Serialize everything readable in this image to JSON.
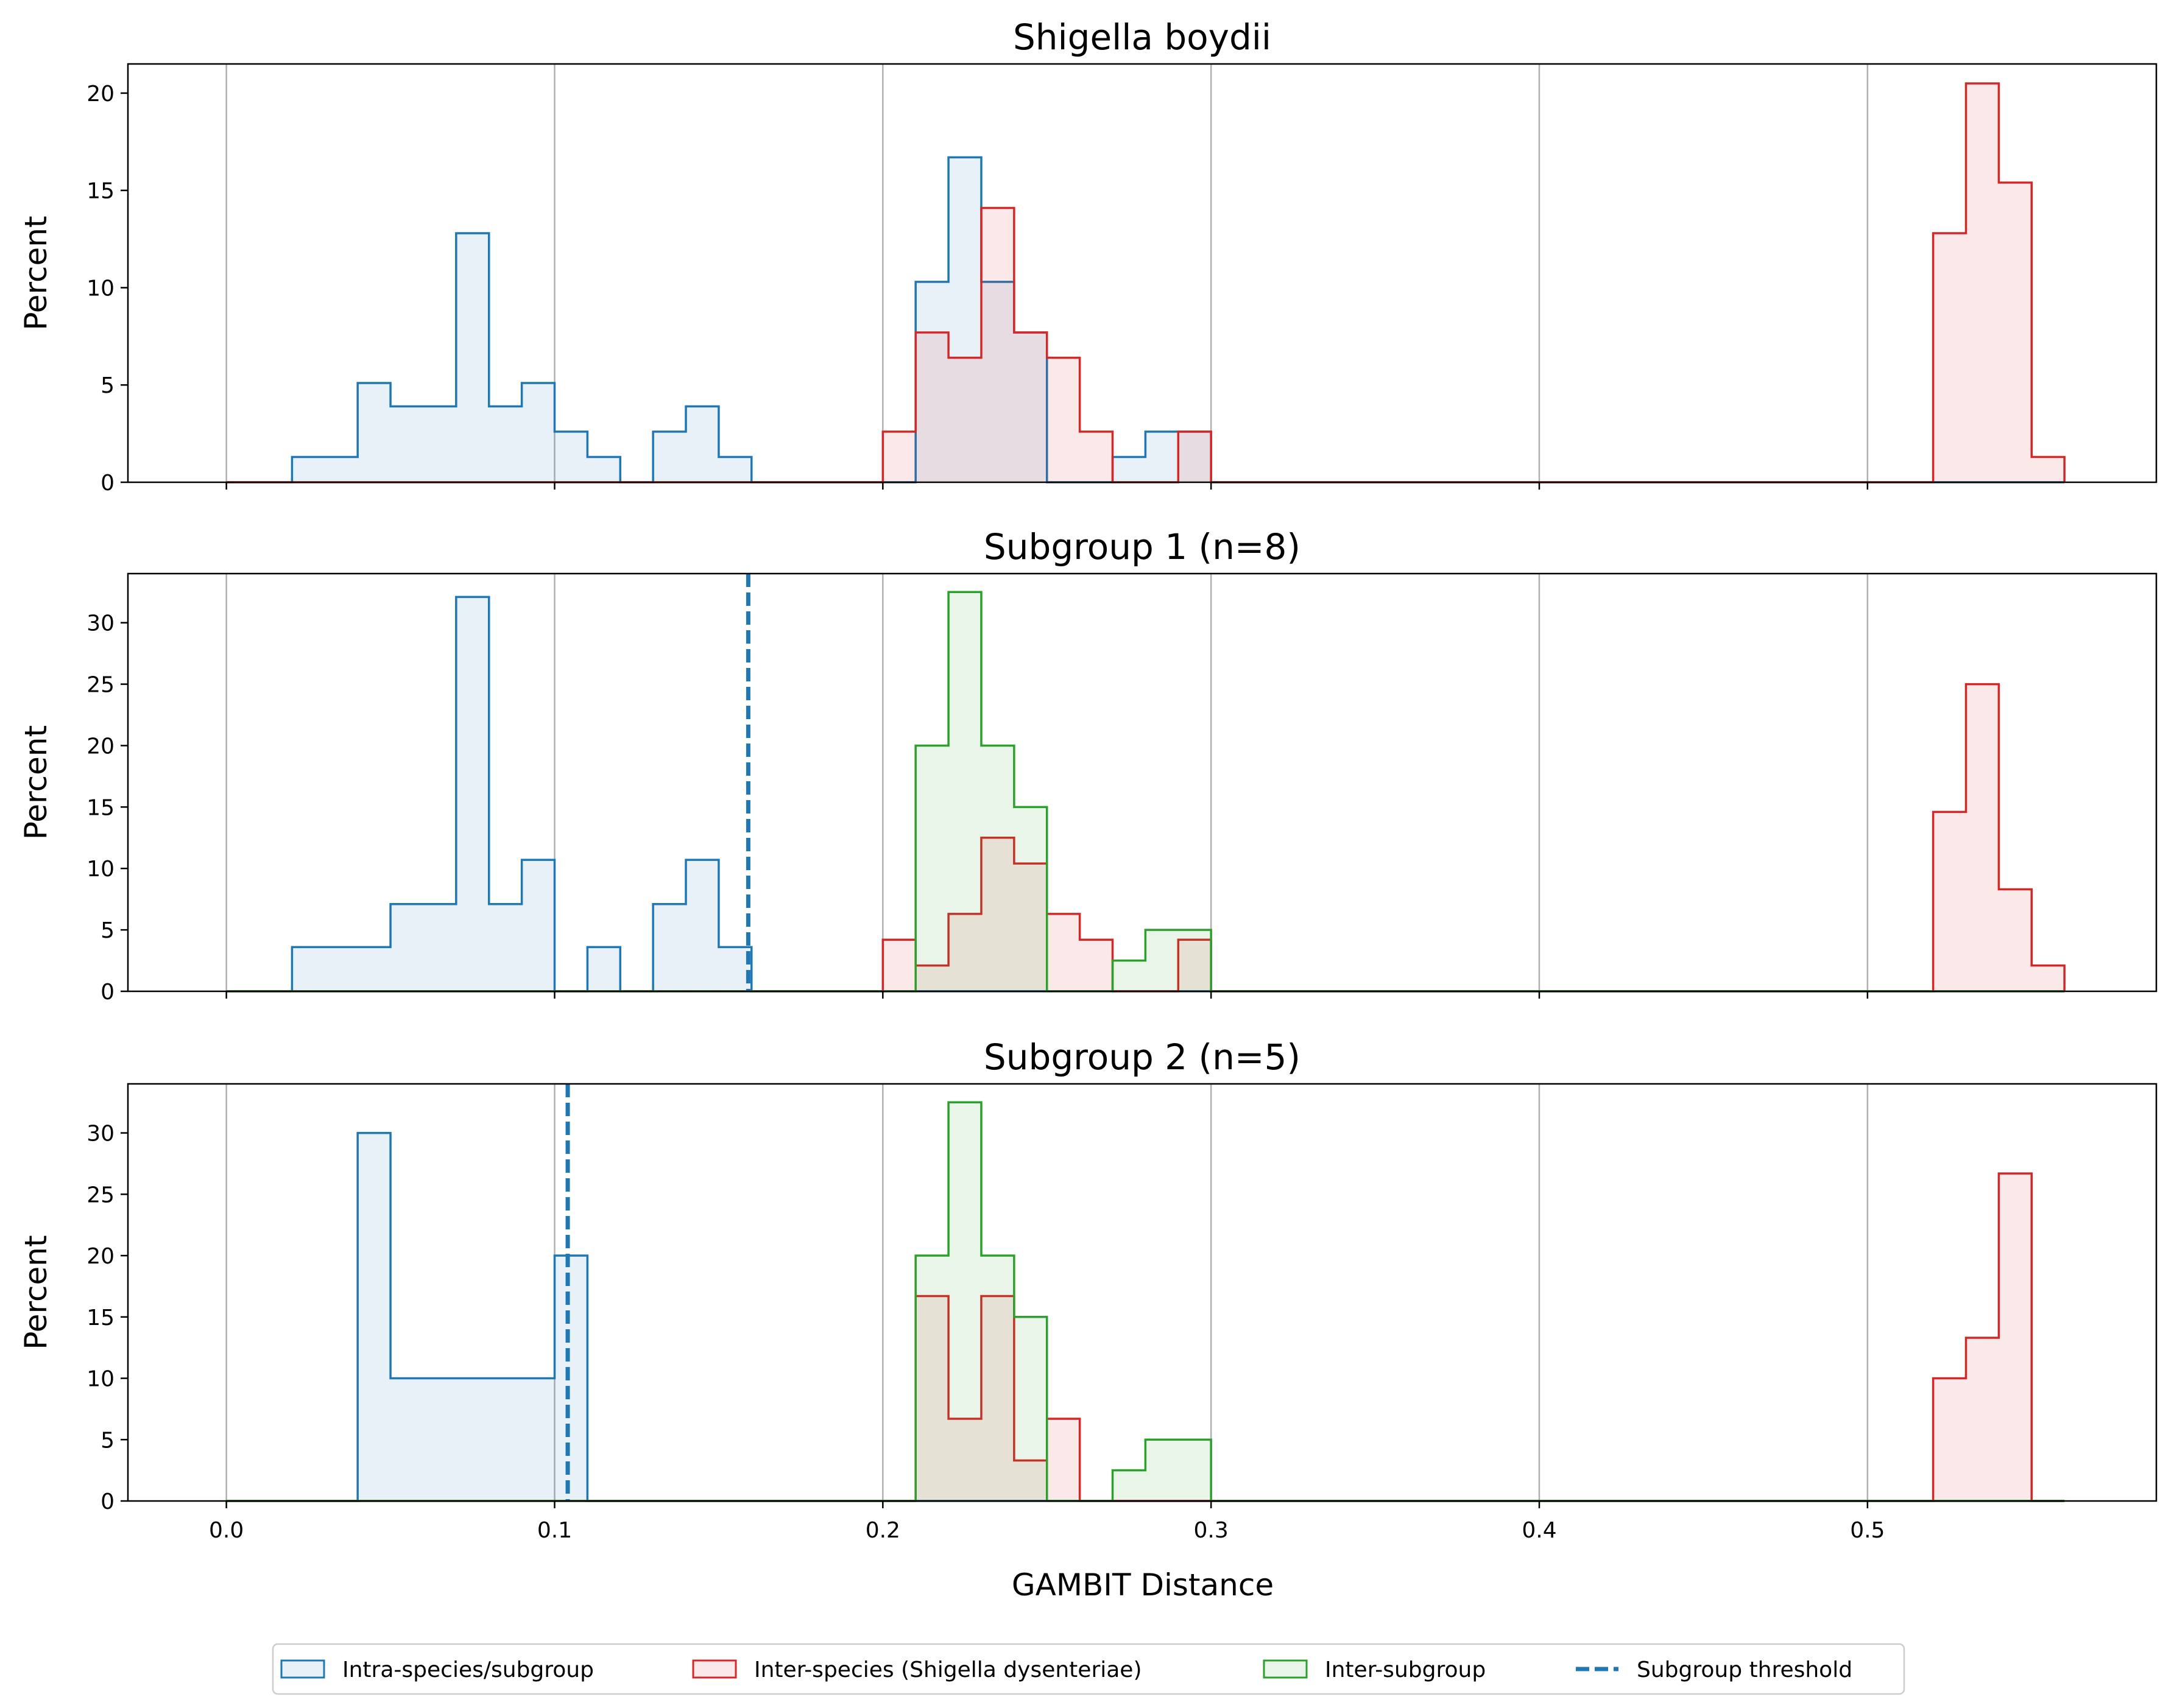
{
  "colors": {
    "intra": "#1f77b4",
    "inter_species": "#d62728",
    "inter_subgroup": "#2ca02c",
    "threshold": "#1f77b4",
    "grid": "#b0b0b0"
  },
  "chart_data": {
    "type": "histogram",
    "xlabel": "GAMBIT Distance",
    "xlim": [
      -0.03,
      0.588
    ],
    "xticks": [
      0.0,
      0.1,
      0.2,
      0.3,
      0.4,
      0.5
    ],
    "xtick_labels": [
      "0.0",
      "0.1",
      "0.2",
      "0.3",
      "0.4",
      "0.5"
    ],
    "bin_width": 0.01,
    "bins_start": 0.0,
    "bins_end": 0.56,
    "grid": "vertical",
    "legend": {
      "placement": "bottom-center",
      "entries": [
        {
          "key": "intra",
          "label": "Intra-species/subgroup"
        },
        {
          "key": "inter_species",
          "label": "Inter-species (Shigella dysenteriae)"
        },
        {
          "key": "inter_subgroup",
          "label": "Inter-subgroup"
        },
        {
          "key": "threshold",
          "label": "Subgroup threshold"
        }
      ]
    },
    "panels": [
      {
        "title": "Shigella boydii",
        "ylabel": "Percent",
        "ylim": [
          0,
          21.5
        ],
        "yticks": [
          0,
          5,
          10,
          15,
          20
        ],
        "threshold": null,
        "series": [
          {
            "key": "intra",
            "name": "Intra-species/subgroup",
            "bins": [
              [
                0.02,
                1.3
              ],
              [
                0.03,
                1.3
              ],
              [
                0.04,
                5.1
              ],
              [
                0.05,
                3.9
              ],
              [
                0.06,
                3.9
              ],
              [
                0.07,
                12.8
              ],
              [
                0.08,
                3.9
              ],
              [
                0.09,
                5.1
              ],
              [
                0.1,
                2.6
              ],
              [
                0.11,
                1.3
              ],
              [
                0.13,
                2.6
              ],
              [
                0.14,
                3.9
              ],
              [
                0.15,
                1.3
              ],
              [
                0.21,
                10.3
              ],
              [
                0.22,
                16.7
              ],
              [
                0.23,
                10.3
              ],
              [
                0.24,
                7.7
              ],
              [
                0.27,
                1.3
              ],
              [
                0.28,
                2.6
              ],
              [
                0.29,
                2.6
              ]
            ]
          },
          {
            "key": "inter_species",
            "name": "Inter-species (Shigella dysenteriae)",
            "bins": [
              [
                0.2,
                2.6
              ],
              [
                0.21,
                7.7
              ],
              [
                0.22,
                6.4
              ],
              [
                0.23,
                14.1
              ],
              [
                0.24,
                7.7
              ],
              [
                0.25,
                6.4
              ],
              [
                0.26,
                2.6
              ],
              [
                0.29,
                2.6
              ],
              [
                0.52,
                12.8
              ],
              [
                0.53,
                20.5
              ],
              [
                0.54,
                15.4
              ],
              [
                0.55,
                1.3
              ]
            ]
          }
        ]
      },
      {
        "title": "Subgroup 1 (n=8)",
        "ylabel": "Percent",
        "ylim": [
          0,
          34.0
        ],
        "yticks": [
          0,
          5,
          10,
          15,
          20,
          25,
          30
        ],
        "threshold": 0.159,
        "series": [
          {
            "key": "intra",
            "name": "Intra-species/subgroup",
            "bins": [
              [
                0.02,
                3.6
              ],
              [
                0.03,
                3.6
              ],
              [
                0.04,
                3.6
              ],
              [
                0.05,
                7.1
              ],
              [
                0.06,
                7.1
              ],
              [
                0.07,
                32.1
              ],
              [
                0.08,
                7.1
              ],
              [
                0.09,
                10.7
              ],
              [
                0.11,
                3.6
              ],
              [
                0.13,
                7.1
              ],
              [
                0.14,
                10.7
              ],
              [
                0.15,
                3.6
              ]
            ]
          },
          {
            "key": "inter_species",
            "name": "Inter-species (Shigella dysenteriae)",
            "bins": [
              [
                0.2,
                4.2
              ],
              [
                0.21,
                2.1
              ],
              [
                0.22,
                6.3
              ],
              [
                0.23,
                12.5
              ],
              [
                0.24,
                10.4
              ],
              [
                0.25,
                6.3
              ],
              [
                0.26,
                4.2
              ],
              [
                0.29,
                4.2
              ],
              [
                0.52,
                14.6
              ],
              [
                0.53,
                25.0
              ],
              [
                0.54,
                8.3
              ],
              [
                0.55,
                2.1
              ]
            ]
          },
          {
            "key": "inter_subgroup",
            "name": "Inter-subgroup",
            "bins": [
              [
                0.21,
                20.0
              ],
              [
                0.22,
                32.5
              ],
              [
                0.23,
                20.0
              ],
              [
                0.24,
                15.0
              ],
              [
                0.27,
                2.5
              ],
              [
                0.28,
                5.0
              ],
              [
                0.29,
                5.0
              ]
            ]
          }
        ]
      },
      {
        "title": "Subgroup 2 (n=5)",
        "ylabel": "Percent",
        "ylim": [
          0,
          34.0
        ],
        "yticks": [
          0,
          5,
          10,
          15,
          20,
          25,
          30
        ],
        "threshold": 0.104,
        "series": [
          {
            "key": "intra",
            "name": "Intra-species/subgroup",
            "bins": [
              [
                0.04,
                30.0
              ],
              [
                0.05,
                10.0
              ],
              [
                0.06,
                10.0
              ],
              [
                0.07,
                10.0
              ],
              [
                0.08,
                10.0
              ],
              [
                0.09,
                10.0
              ],
              [
                0.1,
                20.0
              ]
            ]
          },
          {
            "key": "inter_species",
            "name": "Inter-species (Shigella dysenteriae)",
            "bins": [
              [
                0.21,
                16.7
              ],
              [
                0.22,
                6.7
              ],
              [
                0.23,
                16.7
              ],
              [
                0.24,
                3.3
              ],
              [
                0.25,
                6.7
              ],
              [
                0.52,
                10.0
              ],
              [
                0.53,
                13.3
              ],
              [
                0.54,
                26.7
              ]
            ]
          },
          {
            "key": "inter_subgroup",
            "name": "Inter-subgroup",
            "bins": [
              [
                0.21,
                20.0
              ],
              [
                0.22,
                32.5
              ],
              [
                0.23,
                20.0
              ],
              [
                0.24,
                15.0
              ],
              [
                0.27,
                2.5
              ],
              [
                0.28,
                5.0
              ],
              [
                0.29,
                5.0
              ]
            ]
          }
        ]
      }
    ]
  }
}
